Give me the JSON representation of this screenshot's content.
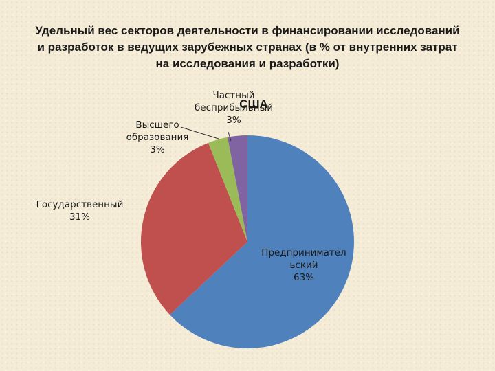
{
  "chart_data": {
    "type": "pie",
    "title_lines": [
      "Удельный вес секторов деятельности в финансировании исследований",
      "и разработок в ведущих зарубежных странах (в % от внутренних затрат",
      "на исследования и разработки)"
    ],
    "subtitle": "США",
    "slices": [
      {
        "label_lines": [
          "Предпринимател",
          "ьский"
        ],
        "value_text": "63%",
        "value": 63,
        "color": "#4f81bd"
      },
      {
        "label_lines": [
          "Государственный"
        ],
        "value_text": "31%",
        "value": 31,
        "color": "#c0504d"
      },
      {
        "label_lines": [
          "Высшего",
          "образования"
        ],
        "value_text": "3%",
        "value": 3,
        "color": "#9bbb59"
      },
      {
        "label_lines": [
          "Частный",
          "бесприбыльный"
        ],
        "value_text": "3%",
        "value": 3,
        "color": "#8064a2"
      }
    ],
    "legend": "none"
  }
}
